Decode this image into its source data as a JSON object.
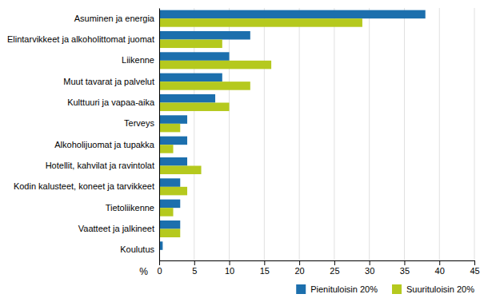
{
  "chart_data": {
    "type": "bar",
    "orientation": "horizontal",
    "categories": [
      "Asuminen ja energia",
      "Elintarvikkeet ja alkoholittomat juomat",
      "Liikenne",
      "Muut tavarat ja palvelut",
      "Kulttuuri ja vapaa-aika",
      "Terveys",
      "Alkoholijuomat ja tupakka",
      "Hotellit, kahvilat ja ravintolat",
      "Kodin kalusteet, koneet ja tarvikkeet",
      "Tietoliikenne",
      "Vaatteet ja jalkineet",
      "Koulutus"
    ],
    "series": [
      {
        "name": "Pienituloisin 20%",
        "color": "#1c6fad",
        "values": [
          38.0,
          13.0,
          10.0,
          9.0,
          8.0,
          4.0,
          4.0,
          4.0,
          3.0,
          3.0,
          3.0,
          0.5
        ]
      },
      {
        "name": "Suurituloisin 20%",
        "color": "#b5c91e",
        "values": [
          29.0,
          9.0,
          16.0,
          13.0,
          10.0,
          3.0,
          2.0,
          6.0,
          4.0,
          2.0,
          3.0,
          0.0
        ]
      }
    ],
    "x_label": "%",
    "xlim": [
      0,
      45
    ],
    "xticks": [
      0,
      5,
      10,
      15,
      20,
      25,
      30,
      35,
      40,
      45
    ],
    "grid": true,
    "legend": "lower right"
  }
}
